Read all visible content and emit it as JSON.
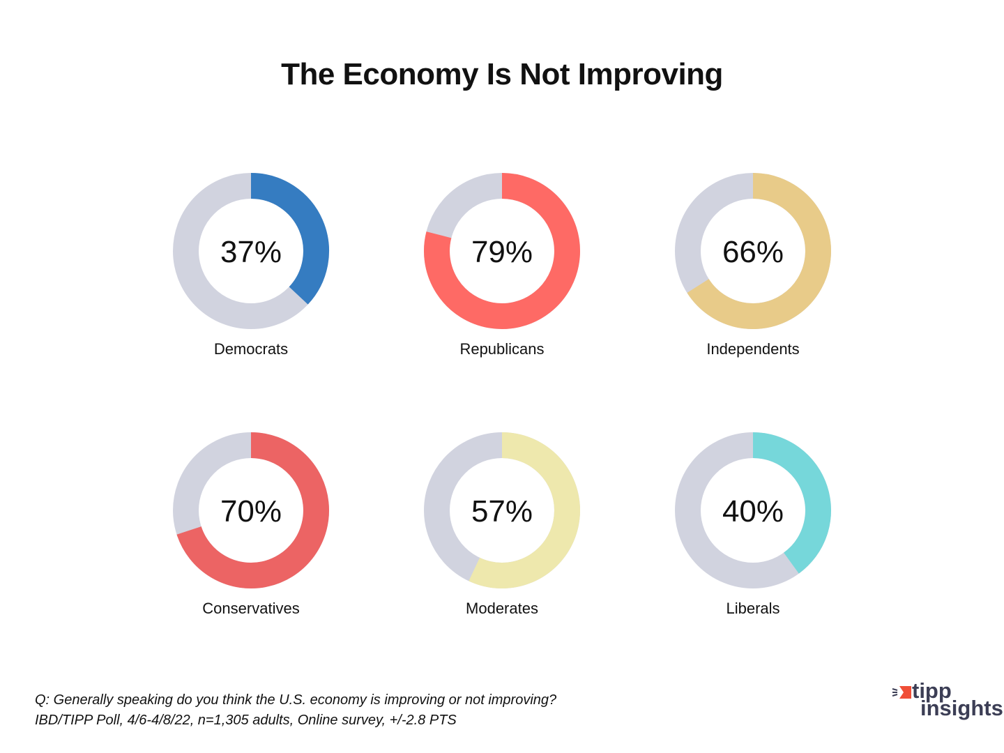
{
  "title": "The Economy Is Not Improving",
  "chart_data": {
    "type": "pie",
    "subtype": "donut",
    "title": "The Economy Is Not Improving",
    "unit": "%",
    "remainder_color": "#d1d3df",
    "charts": [
      {
        "label": "Democrats",
        "value": 37,
        "display": "37%",
        "color": "#357cc1"
      },
      {
        "label": "Republicans",
        "value": 79,
        "display": "79%",
        "color": "#fe6a65"
      },
      {
        "label": "Independents",
        "value": 66,
        "display": "66%",
        "color": "#e8cb89"
      },
      {
        "label": "Conservatives",
        "value": 70,
        "display": "70%",
        "color": "#ec6464"
      },
      {
        "label": "Moderates",
        "value": 57,
        "display": "57%",
        "color": "#eee8ad"
      },
      {
        "label": "Liberals",
        "value": 40,
        "display": "40%",
        "color": "#76d7da"
      }
    ]
  },
  "footer": {
    "question": "Q: Generally speaking do you think the U.S. economy is improving or not improving?",
    "source": "IBD/TIPP Poll, 4/6-4/8/22, n=1,305 adults, Online survey, +/-2.8 PTS"
  },
  "logo": {
    "line1": "tipp",
    "line2": "insights",
    "accent_color": "#f04e37",
    "text_color": "#3c3e55"
  }
}
